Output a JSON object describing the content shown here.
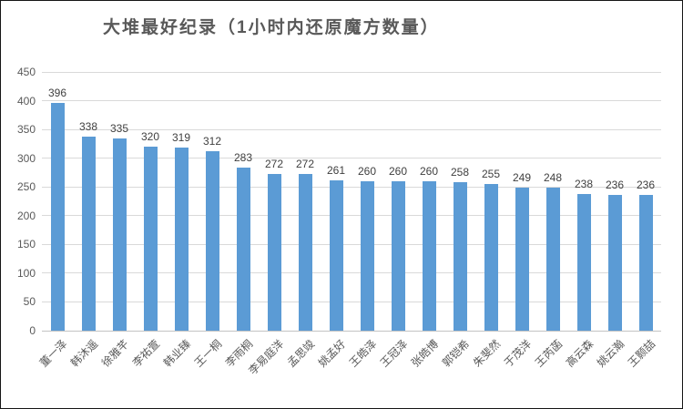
{
  "window": {
    "background": "#ffffff",
    "border_color": "#161616"
  },
  "chart_data": {
    "type": "bar",
    "title": "大堆最好纪录（1小时内还原魔方数量）",
    "categories": [
      "董一泽",
      "韩沐遥",
      "徐雅芊",
      "李祐萱",
      "韩业臻",
      "王一桐",
      "李雨桐",
      "李易庭洋",
      "孟思竣",
      "姚孟好",
      "王皓泽",
      "王冠泽",
      "张皓博",
      "郭铠希",
      "朱斐然",
      "于茂洋",
      "王芮菡",
      "高云森",
      "姚云瀚",
      "王颢喆"
    ],
    "values": [
      396,
      338,
      335,
      320,
      319,
      312,
      283,
      272,
      272,
      261,
      260,
      260,
      260,
      258,
      255,
      249,
      248,
      238,
      236,
      236
    ],
    "value_labels_shown": true,
    "xlabel": "",
    "ylabel": "",
    "ylim": [
      0,
      450
    ],
    "y_ticks": [
      0,
      50,
      100,
      150,
      200,
      250,
      300,
      350,
      400,
      450
    ],
    "grid": true,
    "legend_position": "none",
    "bar_color": "#5b9bd5",
    "gridline_color": "#d9d9d9",
    "axis_line_color": "#c3c3c3",
    "title_color": "#595959",
    "tick_label_color": "#595959",
    "value_label_color": "#404040",
    "x_label_rotation_deg": 45
  }
}
